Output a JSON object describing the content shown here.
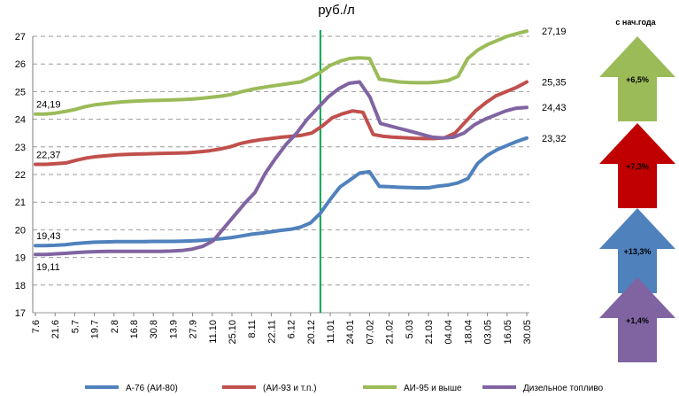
{
  "chart_data": {
    "type": "line",
    "title": "",
    "unit_label": "руб./л",
    "ylim": [
      17,
      27
    ],
    "yticks": [
      17,
      18,
      19,
      20,
      21,
      22,
      23,
      24,
      25,
      26,
      27
    ],
    "grid": true,
    "legend_position": "bottom",
    "x_tick_labels": [
      "7.6",
      "21.6",
      "5.7",
      "19.7",
      "2.8",
      "16.8",
      "30.8",
      "13.9",
      "27.9",
      "11.10",
      "25.10",
      "8.11",
      "22.11",
      "6.12",
      "20.12",
      "11.01",
      "24.01",
      "07.02",
      "21.02",
      "5.03",
      "21.03",
      "04.04",
      "18.04",
      "03.05",
      "16.05",
      "30.05"
    ],
    "x_tick_index": [
      0,
      2,
      4,
      6,
      8,
      10,
      12,
      14,
      16,
      18,
      20,
      22,
      24,
      26,
      28,
      30,
      32,
      34,
      36,
      38,
      40,
      42,
      44,
      46,
      48,
      50
    ],
    "marker_line_index": 29,
    "marker_line_color": "#00a651",
    "series": [
      {
        "name": "А-76 (АИ-80)",
        "color": "#4f81bd",
        "values": [
          19.43,
          19.43,
          19.44,
          19.46,
          19.5,
          19.53,
          19.55,
          19.56,
          19.57,
          19.57,
          19.57,
          19.57,
          19.58,
          19.58,
          19.58,
          19.59,
          19.6,
          19.62,
          19.65,
          19.68,
          19.72,
          19.78,
          19.84,
          19.88,
          19.93,
          19.98,
          20.02,
          20.1,
          20.25,
          20.6,
          21.1,
          21.55,
          21.8,
          22.05,
          22.1,
          21.57,
          21.56,
          21.54,
          21.53,
          21.52,
          21.52,
          21.58,
          21.62,
          21.7,
          21.85,
          22.4,
          22.7,
          22.9,
          23.05,
          23.2,
          23.32
        ]
      },
      {
        "name": "(АИ-93 и т.п.)",
        "color": "#c0504d",
        "values": [
          22.37,
          22.37,
          22.39,
          22.42,
          22.52,
          22.6,
          22.65,
          22.68,
          22.71,
          22.73,
          22.74,
          22.75,
          22.76,
          22.77,
          22.78,
          22.79,
          22.82,
          22.86,
          22.92,
          23.0,
          23.12,
          23.2,
          23.26,
          23.3,
          23.35,
          23.38,
          23.42,
          23.5,
          23.75,
          24.05,
          24.2,
          24.3,
          24.25,
          23.45,
          23.38,
          23.35,
          23.33,
          23.31,
          23.3,
          23.3,
          23.33,
          23.5,
          23.9,
          24.3,
          24.6,
          24.85,
          25.0,
          25.15,
          25.35
        ]
      },
      {
        "name": "АИ-95 и выше",
        "color": "#9bbb59",
        "values": [
          24.19,
          24.19,
          24.22,
          24.28,
          24.35,
          24.45,
          24.52,
          24.56,
          24.6,
          24.63,
          24.65,
          24.67,
          24.68,
          24.69,
          24.7,
          24.71,
          24.73,
          24.76,
          24.8,
          24.84,
          24.9,
          25.0,
          25.08,
          25.14,
          25.2,
          25.25,
          25.3,
          25.35,
          25.5,
          25.7,
          25.95,
          26.1,
          26.2,
          26.22,
          26.2,
          25.45,
          25.4,
          25.35,
          25.33,
          25.32,
          25.32,
          25.35,
          25.4,
          25.55,
          26.2,
          26.5,
          26.7,
          26.85,
          27.0,
          27.1,
          27.19
        ]
      },
      {
        "name": "Дизельное топливо",
        "color": "#8064a2",
        "values": [
          19.11,
          19.11,
          19.13,
          19.15,
          19.18,
          19.2,
          19.21,
          19.22,
          19.22,
          19.22,
          19.22,
          19.22,
          19.22,
          19.23,
          19.25,
          19.3,
          19.4,
          19.6,
          20.05,
          20.5,
          20.95,
          21.35,
          22.05,
          22.6,
          23.1,
          23.5,
          24.0,
          24.4,
          24.8,
          25.1,
          25.3,
          25.35,
          24.8,
          23.85,
          23.75,
          23.65,
          23.55,
          23.45,
          23.35,
          23.32,
          23.35,
          23.5,
          23.8,
          24.0,
          24.15,
          24.3,
          24.4,
          24.43
        ]
      }
    ],
    "data_labels": [
      {
        "text": "24,19",
        "series": 2,
        "point": "first"
      },
      {
        "text": "22,37",
        "series": 1,
        "point": "first"
      },
      {
        "text": "19,43",
        "series": 0,
        "point": "first"
      },
      {
        "text": "19,11",
        "series": 3,
        "point": "first"
      },
      {
        "text": "27,19",
        "series": 2,
        "point": "last"
      },
      {
        "text": "25,35",
        "series": 1,
        "point": "last"
      },
      {
        "text": "24,43",
        "series": 3,
        "point": "last"
      },
      {
        "text": "23,32",
        "series": 0,
        "point": "last"
      }
    ]
  },
  "side_panel": {
    "title": "с нач.года",
    "arrows": [
      {
        "label": "+6,5%",
        "color": "#9bbb59"
      },
      {
        "label": "+7,3%",
        "color": "#c00000"
      },
      {
        "label": "+13,3%",
        "color": "#4f81bd"
      },
      {
        "label": "+1,4%",
        "color": "#8064a2"
      }
    ]
  }
}
